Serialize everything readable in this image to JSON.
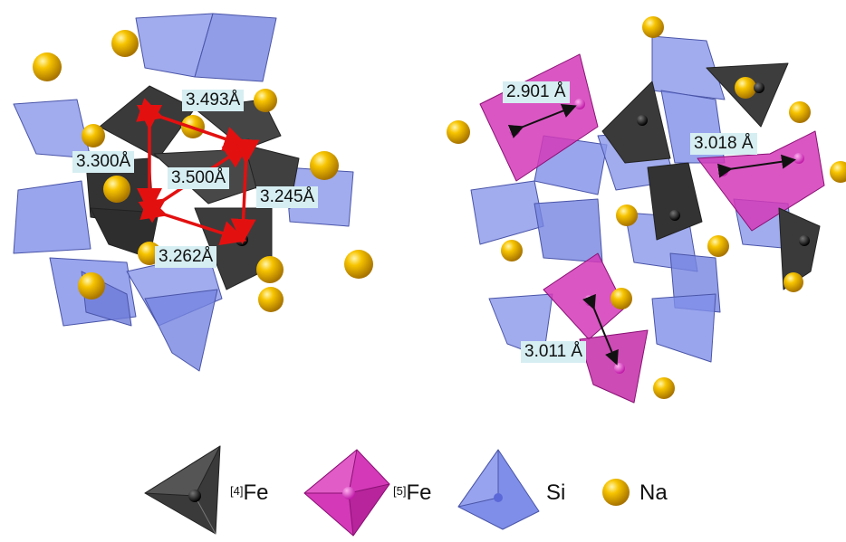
{
  "colors": {
    "fe4": "#3a3a3a",
    "fe5": "#d43ab8",
    "si": "#7f8ee8",
    "na": "#f0b400",
    "bond_arrow_left": "#e31010",
    "bond_arrow_right": "#111111",
    "label_bg": "#d6eef2"
  },
  "left_panel": {
    "distances": [
      "3.493Å",
      "3.300Å",
      "3.500Å",
      "3.245Å",
      "3.262Å"
    ]
  },
  "right_panel": {
    "distances": [
      "2.901 Å",
      "3.018 Å",
      "3.011 Å"
    ]
  },
  "legend": {
    "items": [
      {
        "sup": "[4]",
        "label": "Fe",
        "icon": "fe4-tetrahedron-icon"
      },
      {
        "sup": "[5]",
        "label": "Fe",
        "icon": "fe5-bipyramid-icon"
      },
      {
        "sup": "",
        "label": "Si",
        "icon": "si-tetrahedron-icon"
      },
      {
        "sup": "",
        "label": "Na",
        "icon": "na-sphere-icon"
      }
    ]
  }
}
